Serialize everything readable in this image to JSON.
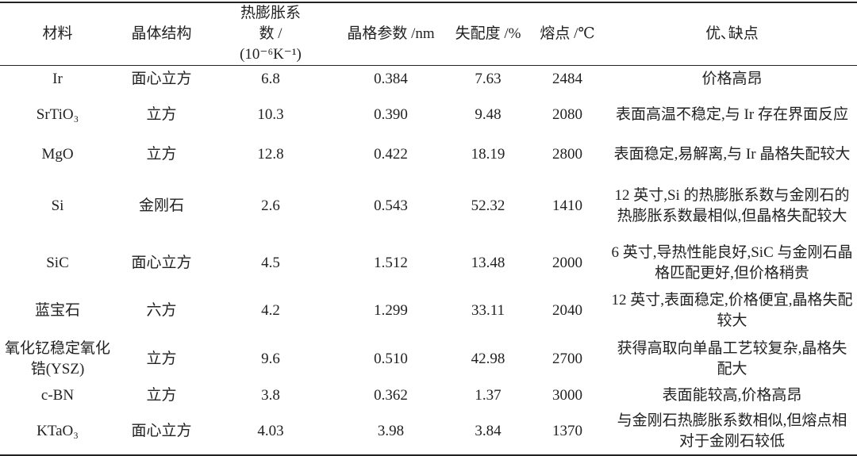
{
  "table": {
    "header": [
      "材料",
      "晶体结构",
      "热膨胀系数 / (10⁻⁶K⁻¹)",
      "晶格参数 /nm",
      "失配度 /%",
      "熔点 /℃",
      "优､缺点"
    ],
    "rows": [
      [
        "Ir",
        "面心立方",
        "6.8",
        "0.384",
        "7.63",
        "2484",
        "价格高昂"
      ],
      [
        "SrTiO₃",
        "立方",
        "10.3",
        "0.390",
        "9.48",
        "2080",
        "表面高温不稳定,与 Ir 存在界面反应"
      ],
      [
        "MgO",
        "立方",
        "12.8",
        "0.422",
        "18.19",
        "2800",
        "表面稳定,易解离,与 Ir 晶格失配较大"
      ],
      [
        "Si",
        "金刚石",
        "2.6",
        "0.543",
        "52.32",
        "1410",
        "12 英寸,Si 的热膨胀系数与金刚石的热膨胀系数最相似,但晶格失配较大"
      ],
      [
        "SiC",
        "面心立方",
        "4.5",
        "1.512",
        "13.48",
        "2000",
        "6 英寸,导热性能良好,SiC 与金刚石晶格匹配更好,但价格稍贵"
      ],
      [
        "蓝宝石",
        "六方",
        "4.2",
        "1.299",
        "33.11",
        "2040",
        "12 英寸,表面稳定,价格便宜,晶格失配较大"
      ],
      [
        "氧化钇稳定氧化锆(YSZ)",
        "立方",
        "9.6",
        "0.510",
        "42.98",
        "2700",
        "获得高取向单晶工艺较复杂,晶格失配大"
      ],
      [
        "c-BN",
        "立方",
        "3.8",
        "0.362",
        "1.37",
        "3000",
        "表面能较高,价格高昂"
      ],
      [
        "KTaO₃",
        "面心立方",
        "4.03",
        "3.98",
        "3.84",
        "1370",
        "与金刚石热膨胀系数相似,但熔点相对于金刚石较低"
      ]
    ]
  }
}
